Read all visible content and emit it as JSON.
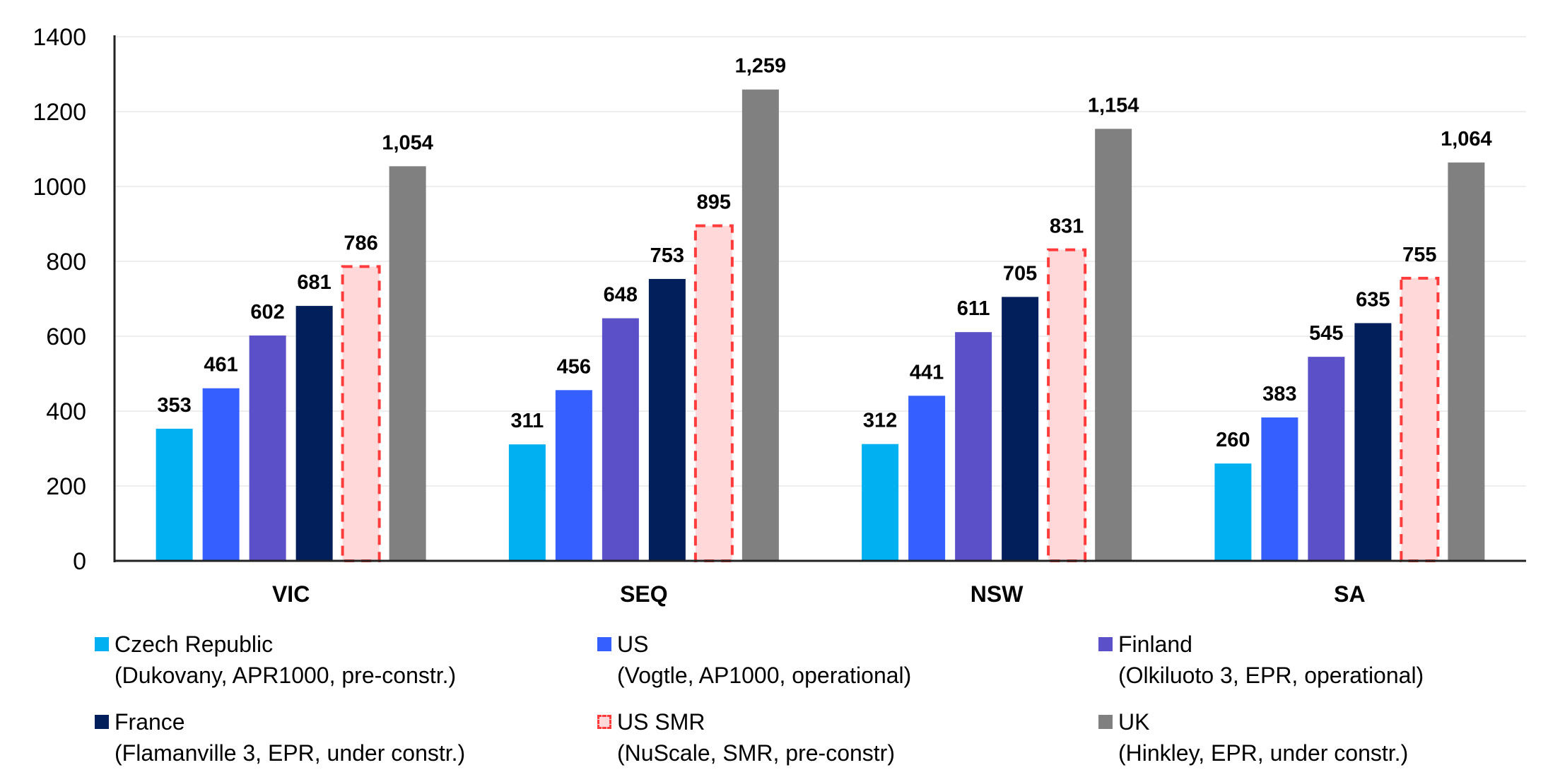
{
  "chart_data": {
    "type": "bar",
    "categories": [
      "VIC",
      "SEQ",
      "NSW",
      "SA"
    ],
    "ylim": [
      0,
      1400
    ],
    "yticks": [
      0,
      200,
      400,
      600,
      800,
      1000,
      1200,
      1400
    ],
    "grid": true,
    "legend_position": "bottom",
    "series": [
      {
        "name": "Czech Republic",
        "detail": "(Dukovany, APR1000, pre-constr.)",
        "color": "#00b0f0",
        "style": "solid",
        "values": [
          353,
          311,
          312,
          260
        ],
        "labels": [
          "353",
          "311",
          "312",
          "260"
        ]
      },
      {
        "name": "US",
        "detail": "(Vogtle, AP1000, operational)",
        "color": "#3560ff",
        "style": "solid",
        "values": [
          461,
          456,
          441,
          383
        ],
        "labels": [
          "461",
          "456",
          "441",
          "383"
        ]
      },
      {
        "name": "Finland",
        "detail": "(Olkiluoto 3, EPR, operational)",
        "color": "#5b50c8",
        "style": "solid",
        "values": [
          602,
          648,
          611,
          545
        ],
        "labels": [
          "602",
          "648",
          "611",
          "545"
        ]
      },
      {
        "name": "France",
        "detail": "(Flamanville 3, EPR, under constr.)",
        "color": "#021f5c",
        "style": "solid",
        "values": [
          681,
          753,
          705,
          635
        ],
        "labels": [
          "681",
          "753",
          "705",
          "635"
        ]
      },
      {
        "name": "US SMR",
        "detail": "(NuScale, SMR, pre-constr)",
        "color": "#ffd9d9",
        "border_color": "#ff3b3b",
        "style": "dashed",
        "values": [
          786,
          895,
          831,
          755
        ],
        "labels": [
          "786",
          "895",
          "831",
          "755"
        ]
      },
      {
        "name": "UK",
        "detail": "(Hinkley, EPR, under constr.)",
        "color": "#808080",
        "style": "solid",
        "values": [
          1054,
          1259,
          1154,
          1064
        ],
        "labels": [
          "1,054",
          "1,259",
          "1,154",
          "1,064"
        ]
      }
    ]
  }
}
